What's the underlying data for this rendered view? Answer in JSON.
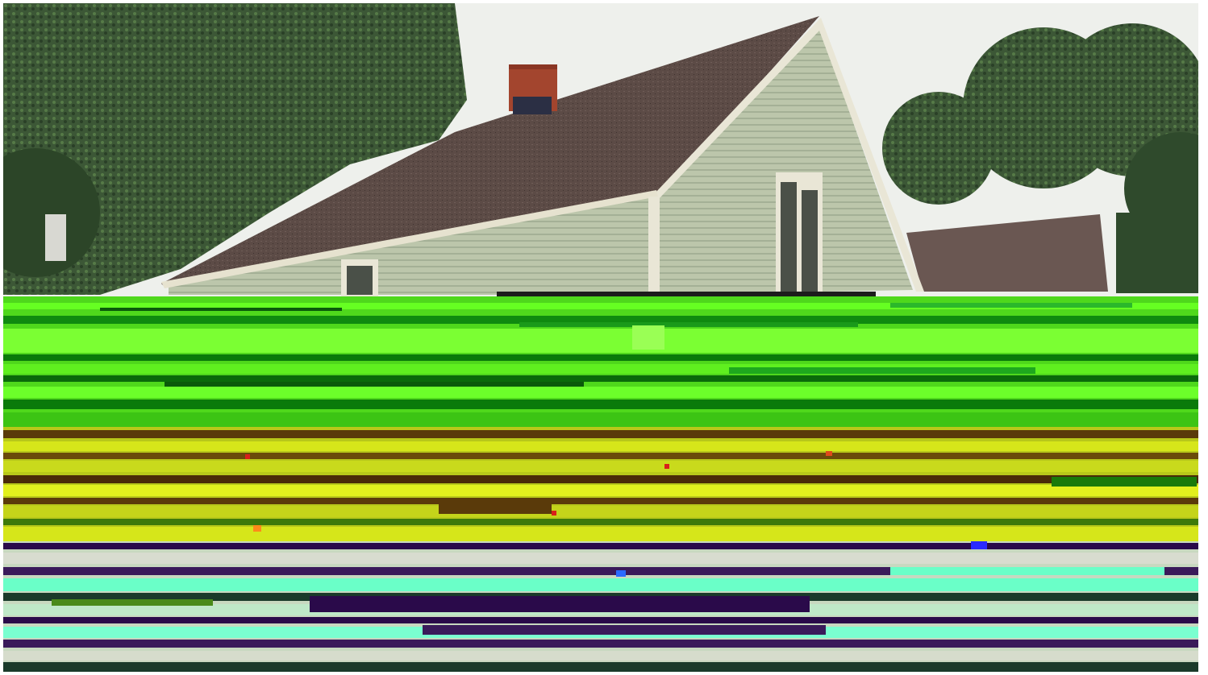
{
  "image": {
    "kind": "photograph",
    "subject": "house",
    "state": "partially corrupted / glitched lower region"
  },
  "colors": {
    "sky": "#eef0ec",
    "tree_dark": "#2f4a2c",
    "tree_mid": "#4c6a3f",
    "roof": "#5e4d48",
    "roof_shadow": "#3f3330",
    "siding": "#b9c3a8",
    "siding_shadow": "#9ba88c",
    "trim": "#e9e6d6",
    "chimney": "#a3452e",
    "window_glass": "#4a5048",
    "glitch_green_bright": "#66ff22",
    "glitch_green_dark": "#0a7a0a",
    "glitch_yellow": "#d6e61a",
    "glitch_brown": "#5a3a0a",
    "glitch_cyan": "#6affc8",
    "glitch_purple": "#2a0a4a"
  }
}
